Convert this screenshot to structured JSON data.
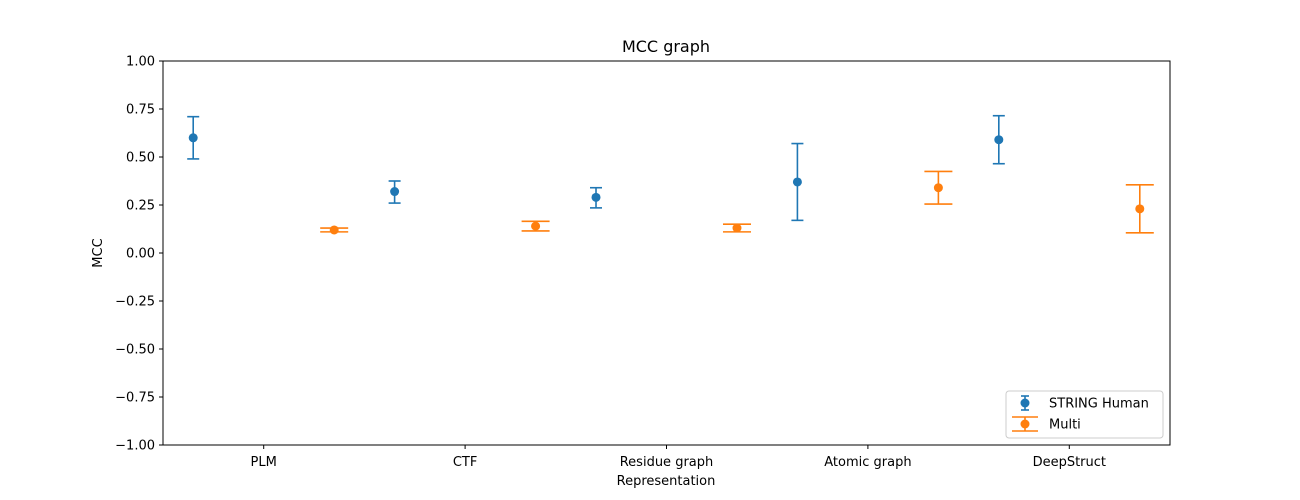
{
  "chart_data": {
    "type": "scatter",
    "title": "MCC graph",
    "xlabel": "Representation",
    "ylabel": "MCC",
    "ylim": [
      -1.0,
      1.0
    ],
    "yticks": [
      "−1.00",
      "−0.75",
      "−0.50",
      "−0.25",
      "0.00",
      "0.25",
      "0.50",
      "0.75",
      "1.00"
    ],
    "categories": [
      "PLM",
      "CTF",
      "Residue graph",
      "Atomic graph",
      "DeepStruct"
    ],
    "grid": false,
    "legend_position": "lower right",
    "series": [
      {
        "name": "STRING Human",
        "color": "#1f77b4",
        "values": [
          0.6,
          0.32,
          0.29,
          0.37,
          0.59
        ],
        "err_low": [
          0.49,
          0.26,
          0.235,
          0.17,
          0.465
        ],
        "err_high": [
          0.71,
          0.375,
          0.34,
          0.57,
          0.715
        ],
        "offset": -0.35
      },
      {
        "name": "Multi",
        "color": "#ff7f0e",
        "values": [
          0.12,
          0.14,
          0.13,
          0.34,
          0.23
        ],
        "err_low": [
          0.11,
          0.115,
          0.11,
          0.255,
          0.105
        ],
        "err_high": [
          0.13,
          0.165,
          0.15,
          0.425,
          0.355
        ],
        "offset": 0.35
      }
    ]
  }
}
